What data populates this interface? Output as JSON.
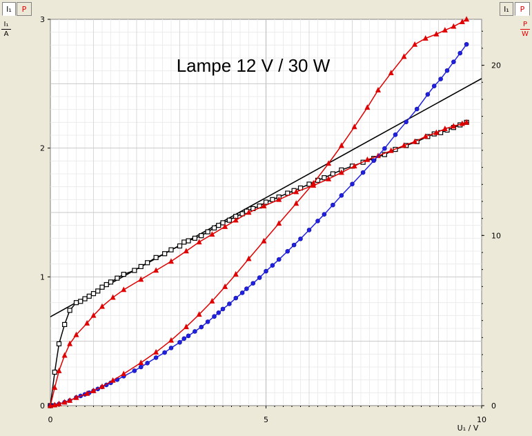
{
  "tabs": {
    "left": [
      {
        "label": "I₁",
        "color": "#000000",
        "active": true
      },
      {
        "label": "P",
        "color": "#e00000",
        "active": false
      }
    ],
    "right": [
      {
        "label": "I₁",
        "color": "#000000",
        "active": false
      },
      {
        "label": "P",
        "color": "#e00000",
        "active": true
      }
    ]
  },
  "axis_labels": {
    "y_left_num": "I₁",
    "y_left_den": "A",
    "y_right_num": "P",
    "y_right_den": "W",
    "x": "U₁ / V"
  },
  "chart_data": {
    "type": "line",
    "title": "Lampe 12 V / 30 W",
    "xlim": [
      0,
      10
    ],
    "ylim_left": [
      0,
      3
    ],
    "ylim_right": [
      0,
      22.7
    ],
    "x_ticks": [
      "0",
      "5",
      "10"
    ],
    "y_left_ticks": [
      "0",
      "1",
      "2",
      "3"
    ],
    "y_right_ticks": [
      "0",
      "10",
      "20"
    ],
    "grid": true,
    "series": [
      {
        "axis": "left",
        "color": "#000000",
        "marker": "square",
        "x": [
          0.0,
          0.1,
          0.2,
          0.33,
          0.45,
          0.6,
          0.7,
          0.8,
          0.9,
          1.0,
          1.1,
          1.2,
          1.3,
          1.4,
          1.55,
          1.7,
          1.95,
          2.1,
          2.25,
          2.45,
          2.65,
          2.8,
          3.0,
          3.1,
          3.2,
          3.35,
          3.5,
          3.65,
          3.8,
          3.9,
          4.0,
          4.15,
          4.3,
          4.45,
          4.55,
          4.7,
          4.85,
          5.0,
          5.15,
          5.3,
          5.5,
          5.65,
          5.8,
          6.0,
          6.2,
          6.35,
          6.55,
          6.75,
          7.0,
          7.25,
          7.5,
          7.75,
          8.0,
          8.25,
          8.5,
          8.75,
          8.9,
          9.05,
          9.2,
          9.35,
          9.5,
          9.65
        ],
        "y": [
          0.0,
          0.26,
          0.48,
          0.63,
          0.74,
          0.8,
          0.81,
          0.83,
          0.85,
          0.87,
          0.89,
          0.92,
          0.94,
          0.96,
          0.99,
          1.02,
          1.05,
          1.08,
          1.11,
          1.15,
          1.18,
          1.21,
          1.24,
          1.27,
          1.28,
          1.3,
          1.32,
          1.35,
          1.38,
          1.4,
          1.42,
          1.44,
          1.47,
          1.49,
          1.51,
          1.53,
          1.55,
          1.58,
          1.6,
          1.62,
          1.65,
          1.67,
          1.69,
          1.72,
          1.75,
          1.77,
          1.8,
          1.83,
          1.86,
          1.89,
          1.92,
          1.95,
          1.99,
          2.02,
          2.05,
          2.09,
          2.11,
          2.12,
          2.14,
          2.16,
          2.18,
          2.2
        ]
      },
      {
        "axis": "left",
        "color": "#e00000",
        "marker": "triangle",
        "x": [
          0.0,
          0.1,
          0.2,
          0.33,
          0.45,
          0.6,
          0.85,
          1.0,
          1.2,
          1.45,
          1.7,
          2.1,
          2.45,
          2.8,
          3.15,
          3.45,
          3.75,
          4.05,
          4.3,
          4.6,
          4.95,
          5.3,
          5.7,
          6.1,
          6.45,
          6.75,
          7.05,
          7.35,
          7.6,
          7.9,
          8.2,
          8.45,
          8.7,
          8.95,
          9.15,
          9.35,
          9.55,
          9.65
        ],
        "y": [
          0.0,
          0.14,
          0.27,
          0.39,
          0.48,
          0.55,
          0.64,
          0.7,
          0.77,
          0.84,
          0.9,
          0.98,
          1.05,
          1.12,
          1.2,
          1.27,
          1.33,
          1.39,
          1.44,
          1.5,
          1.55,
          1.6,
          1.66,
          1.71,
          1.76,
          1.81,
          1.86,
          1.91,
          1.94,
          1.98,
          2.02,
          2.05,
          2.09,
          2.12,
          2.15,
          2.17,
          2.19,
          2.2
        ]
      },
      {
        "axis": "right",
        "color": "#2020e0",
        "marker": "circle",
        "x": [
          0.0,
          0.1,
          0.2,
          0.33,
          0.45,
          0.6,
          0.7,
          0.8,
          0.9,
          1.0,
          1.1,
          1.2,
          1.3,
          1.4,
          1.55,
          1.7,
          1.95,
          2.1,
          2.25,
          2.45,
          2.65,
          2.8,
          3.0,
          3.1,
          3.2,
          3.35,
          3.5,
          3.65,
          3.8,
          3.9,
          4.0,
          4.15,
          4.3,
          4.45,
          4.55,
          4.7,
          4.85,
          5.0,
          5.15,
          5.3,
          5.5,
          5.65,
          5.8,
          6.0,
          6.2,
          6.35,
          6.55,
          6.75,
          7.0,
          7.25,
          7.5,
          7.75,
          8.0,
          8.25,
          8.5,
          8.75,
          8.9,
          9.05,
          9.2,
          9.35,
          9.5,
          9.65
        ],
        "y": [
          0.0,
          0.03,
          0.1,
          0.2,
          0.3,
          0.48,
          0.57,
          0.66,
          0.76,
          0.87,
          0.98,
          1.1,
          1.22,
          1.34,
          1.53,
          1.73,
          2.05,
          2.27,
          2.5,
          2.82,
          3.12,
          3.39,
          3.72,
          3.94,
          4.1,
          4.36,
          4.62,
          4.93,
          5.24,
          5.46,
          5.68,
          5.98,
          6.32,
          6.63,
          6.87,
          7.19,
          7.52,
          7.9,
          8.24,
          8.59,
          9.07,
          9.44,
          9.8,
          10.32,
          10.85,
          11.24,
          11.79,
          12.35,
          13.02,
          13.7,
          14.4,
          15.11,
          15.92,
          16.67,
          17.43,
          18.29,
          18.78,
          19.19,
          19.69,
          20.2,
          20.71,
          21.23
        ]
      },
      {
        "axis": "right",
        "color": "#e00000",
        "marker": "triangle",
        "x": [
          0.0,
          0.1,
          0.2,
          0.33,
          0.45,
          0.6,
          0.85,
          1.0,
          1.2,
          1.45,
          1.7,
          2.1,
          2.45,
          2.8,
          3.15,
          3.45,
          3.75,
          4.05,
          4.3,
          4.6,
          4.95,
          5.3,
          5.7,
          6.1,
          6.45,
          6.75,
          7.05,
          7.35,
          7.6,
          7.9,
          8.2,
          8.45,
          8.7,
          8.95,
          9.15,
          9.35,
          9.55,
          9.65
        ],
        "y": [
          0.0,
          0.04,
          0.1,
          0.2,
          0.3,
          0.47,
          0.71,
          0.87,
          1.12,
          1.48,
          1.87,
          2.52,
          3.14,
          3.84,
          4.63,
          5.36,
          6.14,
          6.99,
          7.72,
          8.63,
          9.67,
          10.71,
          11.88,
          13.07,
          14.23,
          15.28,
          16.38,
          17.52,
          18.54,
          19.55,
          20.51,
          21.22,
          21.58,
          21.83,
          22.06,
          22.28,
          22.55,
          22.7
        ]
      }
    ],
    "fit_line": {
      "axis": "left",
      "color": "#000000",
      "x": [
        0,
        10
      ],
      "y": [
        0.69,
        2.54
      ]
    }
  }
}
